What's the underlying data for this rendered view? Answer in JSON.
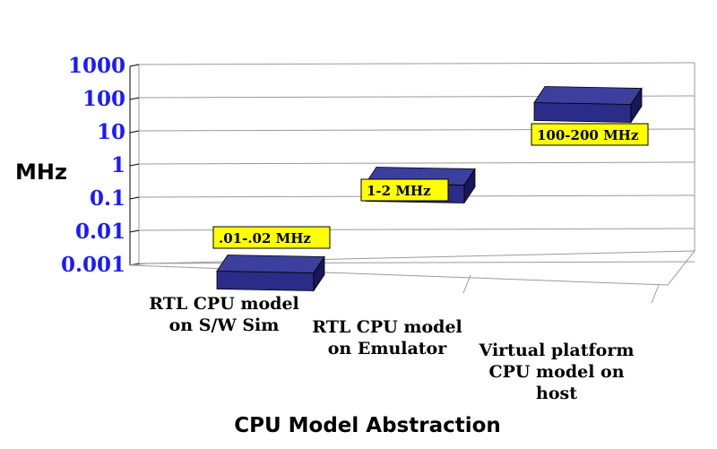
{
  "chart_data": {
    "type": "bar",
    "scale": "log",
    "title": "",
    "xlabel": "CPU Model Abstraction",
    "ylabel": "MHz",
    "yticks": [
      0.001,
      0.01,
      0.1,
      1,
      10,
      100,
      1000
    ],
    "ytick_labels": [
      "0.001",
      "0.01",
      "0.1",
      "1",
      "10",
      "100",
      "1000"
    ],
    "ylim": [
      0.001,
      1000
    ],
    "grid": true,
    "categories": [
      {
        "lines": [
          "RTL CPU model",
          "on S/W Sim"
        ]
      },
      {
        "lines": [
          "RTL CPU model",
          "on Emulator"
        ]
      },
      {
        "lines": [
          "Virtual platform",
          "CPU model on",
          "host"
        ]
      }
    ],
    "values": [
      0.015,
      1.5,
      150
    ],
    "data_labels": [
      ".01-.02 MHz",
      "1-2 MHz",
      "100-200 MHz"
    ]
  },
  "colors": {
    "bar_top": "#3c3f9e",
    "bar_front": "#2a2c87",
    "bar_side": "#17185a",
    "tick_label": "#1a1aff",
    "label_box": "#ffff00",
    "grid": "#9a9a9a",
    "axis_text": "#000000"
  }
}
